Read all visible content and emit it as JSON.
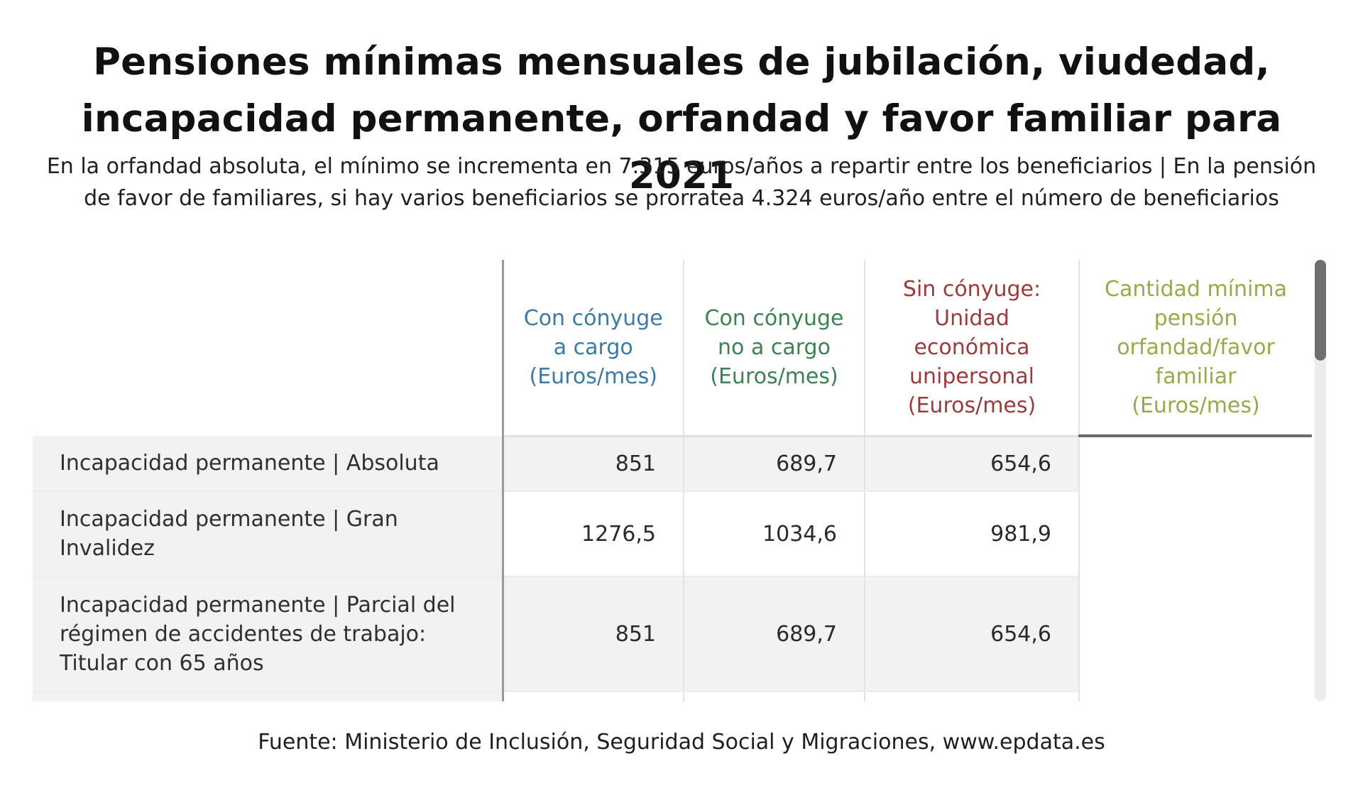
{
  "title": "Pensiones mínimas mensuales de jubilación, viudedad, incapacidad permanente, orfandad y favor familiar para 2021",
  "subtitle": "En la orfandad absoluta, el mínimo se incrementa en 7.315 euros/años a repartir entre los beneficiarios | En la pensión de favor de familiares, si hay varios beneficiarios se prorratea 4.324 euros/año entre el número de beneficiarios",
  "source": "Fuente: Ministerio de Inclusión, Seguridad Social y Migraciones, www.epdata.es",
  "colors": {
    "col1": "#3d7aa3",
    "col2": "#3c8253",
    "col3": "#9b3b3b",
    "col4": "#9ba84a",
    "row_shade": "#f2f2f2"
  },
  "chart_data": {
    "type": "table",
    "columns": [
      "",
      "Con cónyuge a cargo (Euros/mes)",
      "Con cónyuge no a cargo (Euros/mes)",
      "Sin cónyuge: Unidad económica unipersonal (Euros/mes)",
      "Cantidad mínima pensión orfandad/favor familiar (Euros/mes)"
    ],
    "rows": [
      {
        "label": "Incapacidad permanente | Absoluta",
        "values": [
          "851",
          "689,7",
          "654,6",
          ""
        ]
      },
      {
        "label": "Incapacidad permanente | Gran Invalidez",
        "values": [
          "1276,5",
          "1034,6",
          "981,9",
          ""
        ]
      },
      {
        "label": "Incapacidad permanente | Parcial del régimen de accidentes de trabajo: Titular con 65 años",
        "values": [
          "851",
          "689,7",
          "654,6",
          ""
        ]
      }
    ]
  }
}
